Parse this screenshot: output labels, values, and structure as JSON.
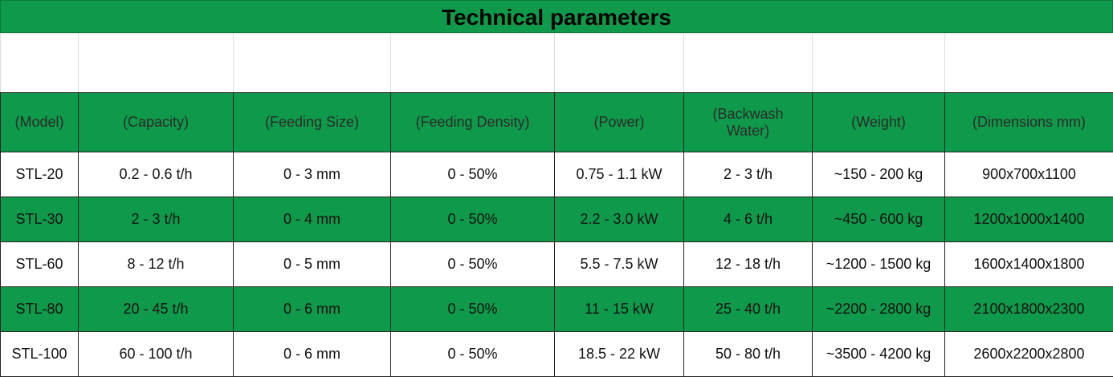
{
  "title": "Technical parameters",
  "table": {
    "header": [
      "(Model)",
      "(Capacity)",
      "(Feeding Size)",
      "(Feeding Density)",
      "(Power)",
      "(Backwash Water)",
      "(Weight)",
      "(Dimensions mm)"
    ],
    "rows": [
      [
        "STL-20",
        "0.2 - 0.6 t/h",
        "0 - 3 mm",
        "0 - 50%",
        "0.75 - 1.1 kW",
        "2 - 3 t/h",
        "~150 - 200 kg",
        "900x700x1100"
      ],
      [
        "STL-30",
        "2 - 3 t/h",
        "0 - 4 mm",
        "0 - 50%",
        "2.2 - 3.0 kW",
        "4 - 6 t/h",
        "~450 - 600 kg",
        "1200x1000x1400"
      ],
      [
        "STL-60",
        "8 - 12 t/h",
        "0 - 5 mm",
        "0 - 50%",
        "5.5 - 7.5 kW",
        "12 - 18 t/h",
        "~1200 - 1500 kg",
        "1600x1400x1800"
      ],
      [
        "STL-80",
        "20 - 45 t/h",
        "0 - 6 mm",
        "0 - 50%",
        "11 - 15 kW",
        "25 - 40 t/h",
        "~2200 - 2800 kg",
        "2100x1800x2300"
      ],
      [
        "STL-100",
        "60 - 100 t/h",
        "0 - 6 mm",
        "0 - 50%",
        "18.5 - 22 kW",
        "50 - 80 t/h",
        "~3500 - 4200 kg",
        "2600x2200x2800"
      ]
    ]
  }
}
